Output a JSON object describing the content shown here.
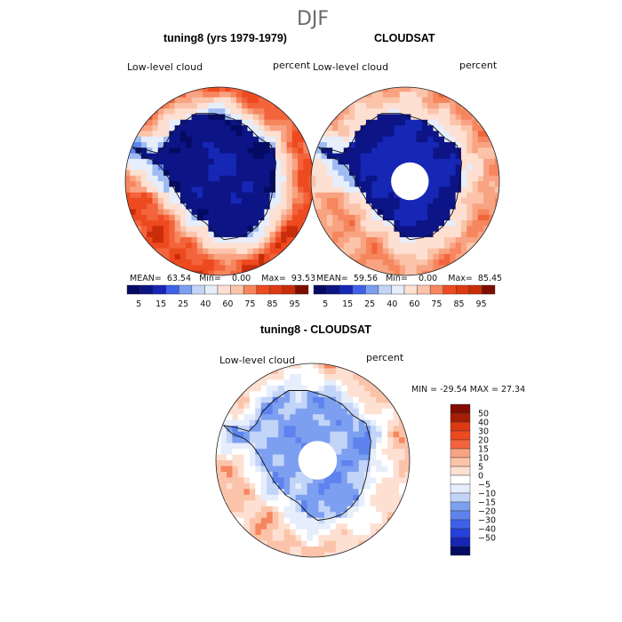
{
  "figure": {
    "season": "DJF"
  },
  "colors": {
    "positive": [
      "#fde0d2",
      "#fbc4aa",
      "#f8a382",
      "#f6865e",
      "#f3643c",
      "#ee4a20",
      "#de3a12",
      "#c92d0a",
      "#a51d04",
      "#810c00"
    ],
    "negative": [
      "#e6edfb",
      "#c2d4f7",
      "#9dbbf2",
      "#7d9ff0",
      "#5e83ee",
      "#3f61ea",
      "#2440dd",
      "#1626b5",
      "#0c1486",
      "#050a62"
    ],
    "neutral": "#ffffff",
    "coastline": "#111111"
  },
  "panels": {
    "model": {
      "title": "tuning8 (yrs 1979-1979)",
      "variable_label": "Low-level cloud",
      "units_label": "percent",
      "stats": {
        "mean_label": "MEAN=",
        "mean": "63.54",
        "min_label": "Min=",
        "min": "0.00",
        "max_label": "Max=",
        "max": "93.53"
      }
    },
    "obs": {
      "title": "CLOUDSAT",
      "variable_label": "Low-level cloud",
      "units_label": "percent",
      "stats": {
        "mean_label": "MEAN=",
        "mean": "59.56",
        "min_label": "Min=",
        "min": "0.00",
        "max_label": "Max=",
        "max": "85.45"
      }
    },
    "diff": {
      "title": "tuning8 - CLOUDSAT",
      "variable_label": "Low-level cloud",
      "units_label": "percent",
      "stats_text": "MIN = -29.54 MAX =  27.34"
    }
  },
  "chart_data": [
    {
      "type": "heatmap",
      "projection": "south polar stereographic",
      "title": "tuning8 (yrs 1979-1979)",
      "variable": "Low-level cloud",
      "units": "percent",
      "mean": 63.54,
      "min": 0.0,
      "max": 93.53,
      "colorbar_levels": [
        5,
        15,
        25,
        40,
        60,
        75,
        85,
        95
      ],
      "pattern": {
        "ocean_mean": 80,
        "antarctica": 5,
        "sea_ice_edge": 40,
        "pole_hole": false
      }
    },
    {
      "type": "heatmap",
      "projection": "south polar stereographic",
      "title": "CLOUDSAT",
      "variable": "Low-level cloud",
      "units": "percent",
      "mean": 59.56,
      "min": 0.0,
      "max": 85.45,
      "colorbar_levels": [
        5,
        15,
        25,
        40,
        60,
        75,
        85,
        95
      ],
      "pattern": {
        "ocean_mean": 68,
        "antarctica": 8,
        "sea_ice_edge": 50,
        "pole_hole": true
      }
    },
    {
      "type": "heatmap",
      "projection": "south polar stereographic",
      "title": "tuning8 - CLOUDSAT",
      "variable": "Low-level cloud",
      "units": "percent",
      "min": -29.54,
      "max": 27.34,
      "colorbar_levels": [
        "50",
        "40",
        "30",
        "20",
        "15",
        "10",
        "5",
        "0",
        "−5",
        "−10",
        "−15",
        "−20",
        "−30",
        "−40",
        "−50"
      ],
      "pattern": {
        "ocean_mean": 10,
        "antarctica": -12,
        "sea_ice_edge": -5,
        "pole_hole": true
      }
    }
  ]
}
